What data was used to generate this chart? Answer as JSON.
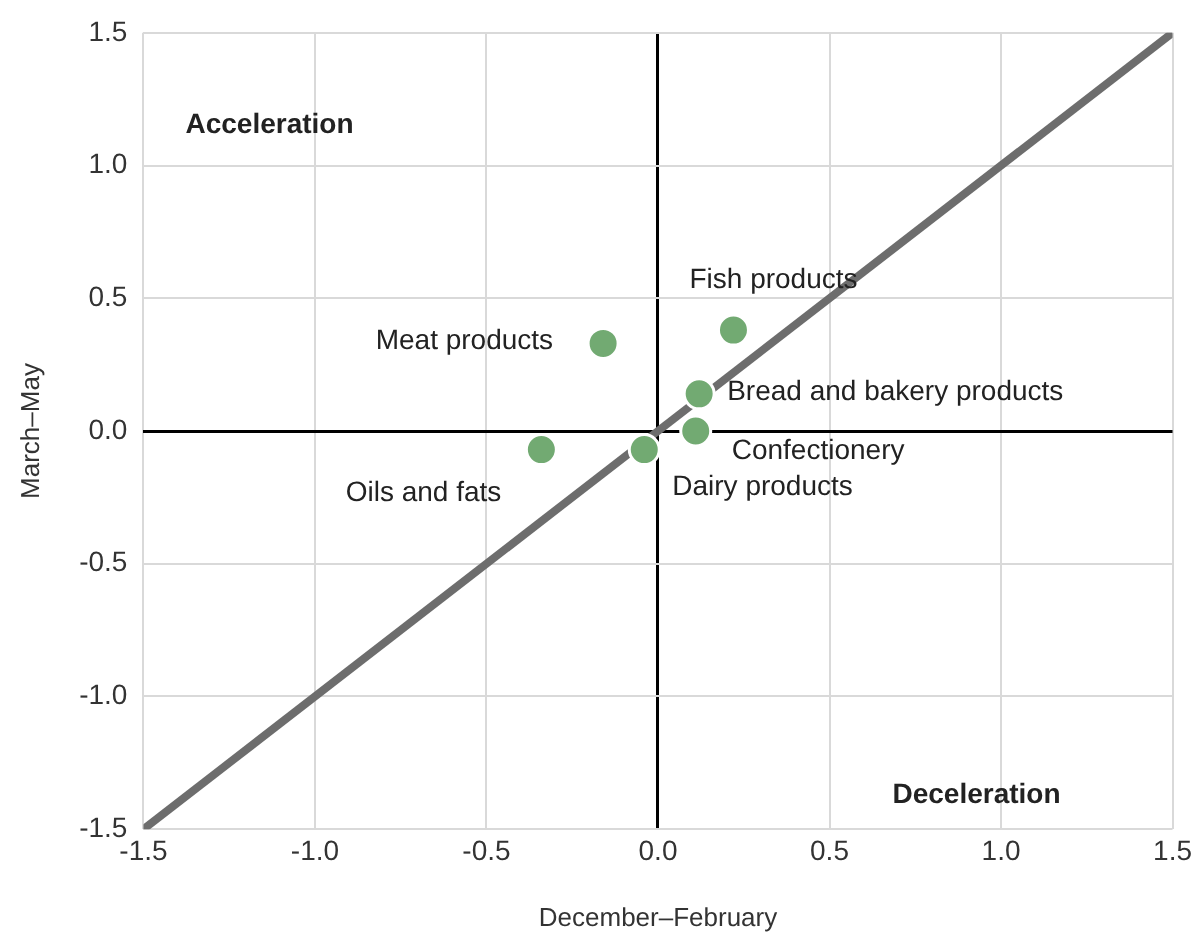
{
  "chart_data": {
    "type": "scatter",
    "xlabel": "December–February",
    "ylabel": "March–May",
    "xlim": [
      -1.5,
      1.5
    ],
    "ylim": [
      -1.5,
      1.5
    ],
    "xticks": [
      {
        "value": -1.5,
        "label": "-1.5"
      },
      {
        "value": -1,
        "label": "-1.0"
      },
      {
        "value": -0.5,
        "label": "-0.5"
      },
      {
        "value": 0,
        "label": "0.0"
      },
      {
        "value": 0.5,
        "label": "0.5"
      },
      {
        "value": 1,
        "label": "1.0"
      },
      {
        "value": 1.5,
        "label": "1.5"
      }
    ],
    "yticks": [
      {
        "value": -1.5,
        "label": "-1.5"
      },
      {
        "value": -1,
        "label": "-1.0"
      },
      {
        "value": -0.5,
        "label": "-0.5"
      },
      {
        "value": 0,
        "label": "0.0"
      },
      {
        "value": 0.5,
        "label": "0.5"
      },
      {
        "value": 1,
        "label": "1.0"
      },
      {
        "value": 1.5,
        "label": "1.5"
      }
    ],
    "grid": true,
    "legend": false,
    "series": [
      {
        "type": "line",
        "color": "#6d6d6d",
        "marker": "none",
        "x": [
          -1.5,
          1.5
        ],
        "values": [
          -1.5,
          1.5
        ]
      },
      {
        "type": "scatter",
        "name": "Meat products",
        "color": "#72aa72",
        "marker": "circle",
        "x": [
          -0.16
        ],
        "values": [
          0.33
        ]
      },
      {
        "type": "scatter",
        "name": "Fish products",
        "color": "#72aa72",
        "marker": "circle",
        "x": [
          0.22
        ],
        "values": [
          0.38
        ]
      },
      {
        "type": "scatter",
        "name": "Bread and bakery products",
        "color": "#72aa72",
        "marker": "circle",
        "x": [
          0.12
        ],
        "values": [
          0.14
        ]
      },
      {
        "type": "scatter",
        "name": "Confectionery",
        "color": "#72aa72",
        "marker": "circle",
        "x": [
          0.11
        ],
        "values": [
          0.0
        ]
      },
      {
        "type": "scatter",
        "name": "Dairy products",
        "color": "#72aa72",
        "marker": "circle",
        "x": [
          -0.04
        ],
        "values": [
          -0.07
        ]
      },
      {
        "type": "scatter",
        "name": "Oils and fats",
        "color": "#72aa72",
        "marker": "circle",
        "x": [
          -0.34
        ],
        "values": [
          -0.07
        ]
      }
    ],
    "annotations": [
      "Acceleration",
      "Deceleration"
    ]
  }
}
